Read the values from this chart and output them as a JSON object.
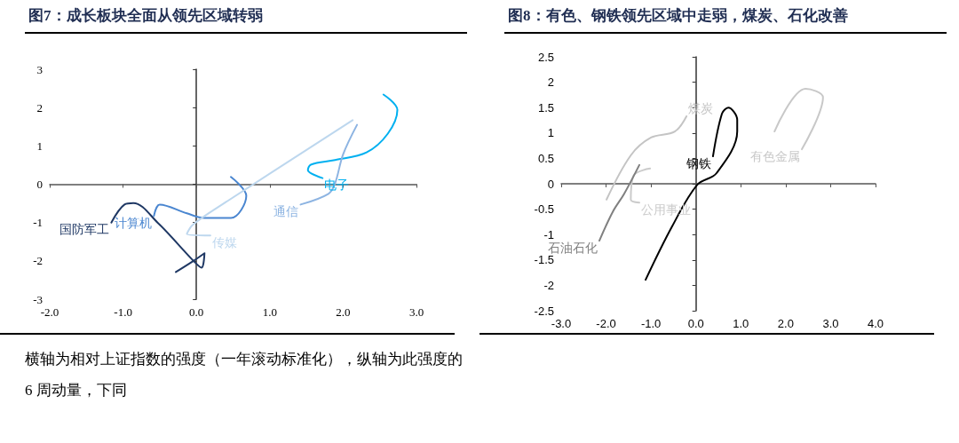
{
  "chart_data": [
    {
      "type": "line",
      "title": "图7：成长板块全面从领先区域转弱",
      "xlim": [
        -2,
        3
      ],
      "ylim": [
        -3,
        3
      ],
      "xticks": [
        {
          "value": -2,
          "label": "-2.0"
        },
        {
          "value": -1,
          "label": "-1.0"
        },
        {
          "value": 0,
          "label": "0.0"
        },
        {
          "value": 1,
          "label": "1.0"
        },
        {
          "value": 2,
          "label": "2.0"
        },
        {
          "value": 3,
          "label": "3.0"
        }
      ],
      "yticks": [
        -3,
        -2,
        -1,
        0,
        1,
        2,
        3
      ],
      "grid": false,
      "series": [
        {
          "name": "国防军工",
          "color": "#1f3864",
          "x": [
            -0.28,
            -0.04,
            0.11,
            0.07,
            -0.04,
            -0.53,
            -0.86,
            -0.98,
            -1.16
          ],
          "values": [
            -2.29,
            -2.0,
            -1.8,
            -2.18,
            -2.0,
            -1.0,
            -0.49,
            -0.53,
            -1.0
          ]
        },
        {
          "name": "计算机",
          "color": "#4a86d0",
          "x": [
            0.47,
            0.68,
            0.47,
            0.11,
            -0.13,
            -0.5,
            -0.58
          ],
          "values": [
            0.19,
            -0.3,
            -0.88,
            -0.88,
            -0.76,
            -0.53,
            -0.83
          ]
        },
        {
          "name": "传媒",
          "color": "#bdd7ee",
          "x": [
            2.13,
            0.35,
            -0.05,
            -0.13,
            0.19
          ],
          "values": [
            1.67,
            -0.53,
            -1.06,
            -1.3,
            -1.34
          ]
        },
        {
          "name": "电子",
          "color": "#00b0f0",
          "x": [
            2.55,
            2.74,
            2.61,
            2.32,
            1.89,
            1.56,
            1.52,
            1.72
          ],
          "values": [
            2.34,
            1.94,
            1.32,
            0.83,
            0.63,
            0.51,
            0.37,
            0.16
          ]
        },
        {
          "name": "通信",
          "color": "#8db4e2",
          "x": [
            2.19,
            2.0,
            1.89,
            1.8,
            1.42
          ],
          "values": [
            1.55,
            0.78,
            0.02,
            -0.25,
            -0.53
          ]
        }
      ],
      "annotations": [
        "横轴为相对上证指数的强度（一年滚动标准化），纵轴为此强度的 6 周动量，下同"
      ]
    },
    {
      "type": "line",
      "title": "图8：有色、钢铁领先区域中走弱，煤炭、石化改善",
      "xlim": [
        -3,
        4
      ],
      "ylim": [
        -2.5,
        2.5
      ],
      "xticks": [
        {
          "value": -3,
          "label": "-3.0"
        },
        {
          "value": -2,
          "label": "-2.0"
        },
        {
          "value": -1,
          "label": "-1.0"
        },
        {
          "value": 0,
          "label": "0.0"
        },
        {
          "value": 1,
          "label": "1.0"
        },
        {
          "value": 2,
          "label": "2.0"
        },
        {
          "value": 3,
          "label": "3.0"
        },
        {
          "value": 4,
          "label": "4.0"
        }
      ],
      "yticks": [
        -2.5,
        -2,
        -1.5,
        -1,
        -0.5,
        0,
        0.5,
        1,
        1.5,
        2,
        2.5
      ],
      "grid": false,
      "series": [
        {
          "name": "钢铁",
          "color": "#000000",
          "x": [
            -1.12,
            -0.53,
            0.03,
            0.46,
            0.92,
            0.92,
            0.72,
            0.58,
            0.38
          ],
          "values": [
            -1.89,
            -0.84,
            -0.02,
            0.21,
            1.03,
            1.26,
            1.5,
            1.38,
            0.54
          ]
        },
        {
          "name": "有色金属",
          "color": "#c8c8c8",
          "x": [
            1.75,
            2.44,
            2.83,
            2.36
          ],
          "values": [
            1.03,
            1.87,
            1.7,
            0.68
          ]
        },
        {
          "name": "煤炭",
          "color": "#c4c4c4",
          "x": [
            -1.99,
            -1.45,
            -1.0,
            -0.47,
            -0.21
          ],
          "values": [
            -0.31,
            0.56,
            0.91,
            1.03,
            1.33
          ]
        },
        {
          "name": "公用事业",
          "color": "#cbcbcb",
          "x": [
            -1.02,
            -1.39,
            -1.45,
            -1.26
          ],
          "values": [
            0.3,
            0.16,
            -0.31,
            -0.37
          ]
        },
        {
          "name": "石油石化",
          "color": "#808080",
          "x": [
            -1.26,
            -1.6,
            -1.85,
            -2.15
          ],
          "values": [
            0.37,
            -0.2,
            -0.55,
            -1.12
          ]
        }
      ]
    }
  ]
}
